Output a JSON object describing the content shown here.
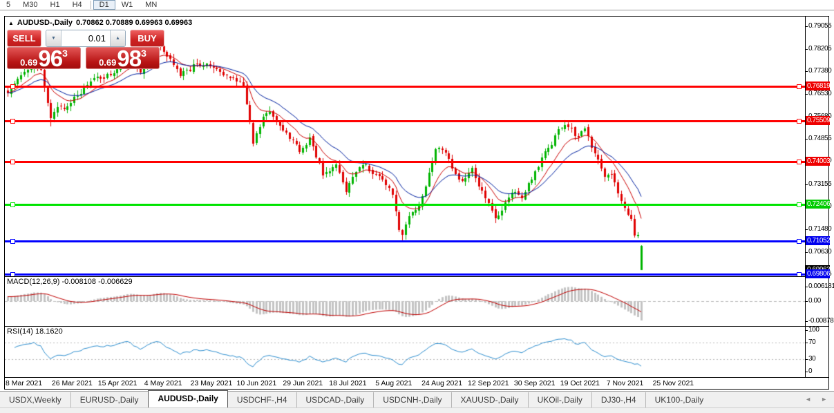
{
  "toolbar": {
    "timeframes": [
      "5",
      "M30",
      "H1",
      "H4",
      "D1",
      "W1",
      "MN"
    ],
    "active": "D1"
  },
  "chart_header": {
    "collapse_icon": "▲",
    "title": "AUDUSD-,Daily",
    "ohlc": "0.70862 0.70889 0.69963 0.69963"
  },
  "trade_panel": {
    "sell_label": "SELL",
    "buy_label": "BUY",
    "lot": "0.01",
    "lot_decrease_icon": "▼",
    "lot_increase_icon": "▲",
    "bid": {
      "prefix": "0.69",
      "big": "96",
      "pip": "3"
    },
    "ask": {
      "prefix": "0.69",
      "big": "98",
      "pip": "3"
    }
  },
  "price_axis": {
    "ticks": [
      0.79055,
      0.78205,
      0.7738,
      0.7653,
      0.7568,
      0.74855,
      0.7403,
      0.73155,
      0.7233,
      0.7148,
      0.7063,
      0.69805
    ]
  },
  "levels": [
    {
      "label": "0.76819",
      "value": 0.76819,
      "color": "#ee0000",
      "line_color": "#ff0000"
    },
    {
      "label": "0.75509",
      "value": 0.75509,
      "color": "#ee0000",
      "line_color": "#ff0000"
    },
    {
      "label": "0.74003",
      "value": 0.74003,
      "color": "#ee0000",
      "line_color": "#ff0000"
    },
    {
      "label": "0.72406",
      "value": 0.72406,
      "color": "#00cc00",
      "line_color": "#00e400"
    },
    {
      "label": "0.71052",
      "value": 0.71052,
      "color": "#0000ee",
      "line_color": "#0000ff"
    },
    {
      "label": "0.69806",
      "value": 0.69806,
      "color": "#0000ee",
      "line_color": "#0000ff"
    }
  ],
  "current_price": {
    "label": "0.69963",
    "value": 0.69963,
    "color": "#000000"
  },
  "macd": {
    "label": "MACD(12,26,9) -0.008108 -0.006629",
    "ticks": [
      {
        "label": "0.006181",
        "value": 0.006181
      },
      {
        "label": "0.00",
        "value": 0
      },
      {
        "label": "-0.00878",
        "value": -0.00878
      }
    ]
  },
  "rsi": {
    "label": "RSI(14) 18.1620",
    "ticks": [
      {
        "label": "100",
        "value": 100
      },
      {
        "label": "70",
        "value": 70
      },
      {
        "label": "30",
        "value": 30
      },
      {
        "label": "0",
        "value": 0
      }
    ],
    "level_lines": [
      70,
      30
    ]
  },
  "x_axis": {
    "labels": [
      "8 Mar 2021",
      "26 Mar 2021",
      "15 Apr 2021",
      "4 May 2021",
      "23 May 2021",
      "10 Jun 2021",
      "29 Jun 2021",
      "18 Jul 2021",
      "5 Aug 2021",
      "24 Aug 2021",
      "12 Sep 2021",
      "30 Sep 2021",
      "19 Oct 2021",
      "7 Nov 2021",
      "25 Nov 2021"
    ]
  },
  "tabs": {
    "items": [
      "USDX,Weekly",
      "EURUSD-,Daily",
      "AUDUSD-,Daily",
      "USDCHF-,H4",
      "USDCAD-,Daily",
      "USDCNH-,Daily",
      "XAUUSD-,Daily",
      "UKOil-,Daily",
      "DJ30-,H4",
      "UK100-,Daily"
    ],
    "active_index": 2,
    "scroll_left_icon": "◄",
    "scroll_right_icon": "►"
  },
  "colors": {
    "candle_up": "#00b400",
    "candle_down": "#e00000",
    "ma_fast": "#cc0000",
    "ma_slow": "#0020a0",
    "macd_hist": "#c4c4c4",
    "macd_signal": "#c00000",
    "rsi_line": "#2e8fd0",
    "indicator_dash": "#b8b8b8"
  },
  "chart_data": {
    "type": "candlestick",
    "symbol": "AUDUSD-",
    "timeframe": "Daily",
    "current_bar": {
      "open": 0.70862,
      "high": 0.70889,
      "low": 0.69963,
      "close": 0.69963
    },
    "y_axis": {
      "max": 0.79408,
      "min": 0.69755,
      "ticks": [
        0.79055,
        0.78205,
        0.7738,
        0.7653,
        0.7568,
        0.74855,
        0.7403,
        0.73155,
        0.7233,
        0.7148,
        0.7063,
        0.69805
      ]
    },
    "bars_total": 192,
    "x_axis_dates": [
      "8 Mar 2021",
      "26 Mar 2021",
      "15 Apr 2021",
      "4 May 2021",
      "23 May 2021",
      "10 Jun 2021",
      "29 Jun 2021",
      "18 Jul 2021",
      "5 Aug 2021",
      "24 Aug 2021",
      "12 Sep 2021",
      "30 Sep 2021",
      "19 Oct 2021",
      "7 Nov 2021",
      "25 Nov 2021"
    ],
    "price_anchors": [
      [
        0,
        0.7655
      ],
      [
        3,
        0.7712
      ],
      [
        8,
        0.7765
      ],
      [
        10,
        0.7745
      ],
      [
        13,
        0.756
      ],
      [
        15,
        0.761
      ],
      [
        17,
        0.7598
      ],
      [
        21,
        0.7648
      ],
      [
        26,
        0.7712
      ],
      [
        31,
        0.7722
      ],
      [
        36,
        0.7788
      ],
      [
        40,
        0.773
      ],
      [
        45,
        0.7843
      ],
      [
        49,
        0.7782
      ],
      [
        52,
        0.7728
      ],
      [
        57,
        0.776
      ],
      [
        61,
        0.7756
      ],
      [
        66,
        0.772
      ],
      [
        71,
        0.769
      ],
      [
        73,
        0.7556
      ],
      [
        74,
        0.7478
      ],
      [
        77,
        0.7566
      ],
      [
        79,
        0.7588
      ],
      [
        83,
        0.752
      ],
      [
        86,
        0.748
      ],
      [
        88,
        0.7436
      ],
      [
        91,
        0.7488
      ],
      [
        95,
        0.7355
      ],
      [
        99,
        0.7388
      ],
      [
        102,
        0.7292
      ],
      [
        104,
        0.735
      ],
      [
        107,
        0.7396
      ],
      [
        110,
        0.736
      ],
      [
        113,
        0.7336
      ],
      [
        116,
        0.728
      ],
      [
        118,
        0.715
      ],
      [
        119,
        0.7126
      ],
      [
        121,
        0.7198
      ],
      [
        124,
        0.723
      ],
      [
        126,
        0.7312
      ],
      [
        129,
        0.7453
      ],
      [
        132,
        0.7435
      ],
      [
        134,
        0.7368
      ],
      [
        137,
        0.7325
      ],
      [
        140,
        0.737
      ],
      [
        143,
        0.729
      ],
      [
        145,
        0.7248
      ],
      [
        147,
        0.719
      ],
      [
        149,
        0.7222
      ],
      [
        152,
        0.729
      ],
      [
        155,
        0.7268
      ],
      [
        158,
        0.734
      ],
      [
        161,
        0.741
      ],
      [
        164,
        0.747
      ],
      [
        166,
        0.752
      ],
      [
        168,
        0.7535
      ],
      [
        170,
        0.7518
      ],
      [
        172,
        0.7488
      ],
      [
        174,
        0.753
      ],
      [
        176,
        0.7452
      ],
      [
        178,
        0.74
      ],
      [
        180,
        0.7342
      ],
      [
        182,
        0.7355
      ],
      [
        184,
        0.7282
      ],
      [
        186,
        0.7225
      ],
      [
        188,
        0.7185
      ],
      [
        189,
        0.712
      ],
      [
        190,
        0.7128
      ],
      [
        191,
        0.69963
      ]
    ],
    "key_extremes": [
      {
        "i": 13,
        "low": 0.7532
      },
      {
        "i": 45,
        "high": 0.7852
      },
      {
        "i": 119,
        "low": 0.7106
      },
      {
        "i": 147,
        "low": 0.717
      },
      {
        "i": 168,
        "high": 0.7555
      }
    ],
    "key_levels": [
      0.76819,
      0.75509,
      0.74003,
      0.72406,
      0.71052,
      0.69806
    ],
    "indicators": [
      {
        "name": "MACD",
        "params": [
          12,
          26,
          9
        ],
        "current": [
          -0.008108,
          -0.006629
        ],
        "axis": [
          0.006181,
          0,
          -0.00878
        ]
      },
      {
        "name": "RSI",
        "params": [
          14
        ],
        "current": 18.162,
        "axis": [
          100,
          70,
          30,
          0
        ],
        "overbought": 70,
        "oversold": 30
      }
    ],
    "overlays": [
      {
        "name": "MA-fast",
        "type": "ema",
        "period": 10,
        "color": "#cc0000"
      },
      {
        "name": "MA-slow",
        "type": "ema",
        "period": 20,
        "color": "#0020a0"
      }
    ]
  }
}
